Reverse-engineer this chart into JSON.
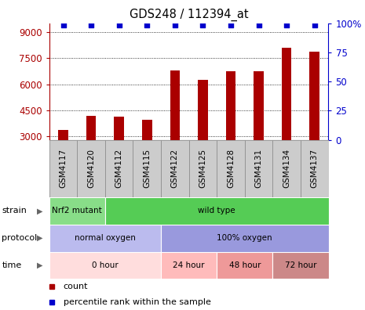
{
  "title": "GDS248 / 112394_at",
  "samples": [
    "GSM4117",
    "GSM4120",
    "GSM4112",
    "GSM4115",
    "GSM4122",
    "GSM4125",
    "GSM4128",
    "GSM4131",
    "GSM4134",
    "GSM4137"
  ],
  "counts": [
    3350,
    4200,
    4150,
    3950,
    6800,
    6250,
    6750,
    6750,
    8100,
    7900
  ],
  "percentiles": [
    99,
    99,
    99,
    99,
    99,
    99,
    99,
    99,
    99,
    99
  ],
  "ylim_left": [
    2800,
    9500
  ],
  "ylim_right": [
    0,
    100
  ],
  "yticks_left": [
    3000,
    4500,
    6000,
    7500,
    9000
  ],
  "yticks_right": [
    0,
    25,
    50,
    75,
    100
  ],
  "bar_color": "#AA0000",
  "dot_color": "#0000CC",
  "strain_labels": [
    {
      "label": "Nrf2 mutant",
      "start": 0,
      "end": 2,
      "color": "#88DD88"
    },
    {
      "label": "wild type",
      "start": 2,
      "end": 10,
      "color": "#55CC55"
    }
  ],
  "protocol_labels": [
    {
      "label": "normal oxygen",
      "start": 0,
      "end": 4,
      "color": "#BBBBEE"
    },
    {
      "label": "100% oxygen",
      "start": 4,
      "end": 10,
      "color": "#9999DD"
    }
  ],
  "time_labels": [
    {
      "label": "0 hour",
      "start": 0,
      "end": 4,
      "color": "#FFDDDD"
    },
    {
      "label": "24 hour",
      "start": 4,
      "end": 6,
      "color": "#FFBBBB"
    },
    {
      "label": "48 hour",
      "start": 6,
      "end": 8,
      "color": "#EE9999"
    },
    {
      "label": "72 hour",
      "start": 8,
      "end": 10,
      "color": "#CC8888"
    }
  ],
  "legend_items": [
    {
      "label": "count",
      "color": "#AA0000"
    },
    {
      "label": "percentile rank within the sample",
      "color": "#0000CC"
    }
  ],
  "bg_color": "#FFFFFF",
  "sample_bg": "#CCCCCC"
}
